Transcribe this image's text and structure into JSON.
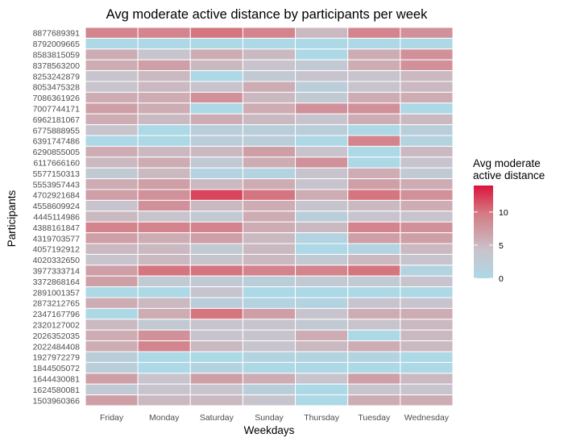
{
  "chart_data": {
    "type": "heatmap",
    "title": "Avg moderate active distance by participants per week",
    "xlabel": "Weekdays",
    "ylabel": "Participants",
    "x": [
      "Friday",
      "Monday",
      "Saturday",
      "Sunday",
      "Thursday",
      "Tuesday",
      "Wednesday"
    ],
    "y": [
      "8877689391",
      "8792009665",
      "8583815059",
      "8378563200",
      "8253242879",
      "8053475328",
      "7086361926",
      "7007744171",
      "6962181067",
      "6775888955",
      "6391747486",
      "6290855005",
      "6117666160",
      "5577150313",
      "5553957443",
      "4702921684",
      "4558609924",
      "4445114986",
      "4388161847",
      "4319703577",
      "4057192912",
      "4020332650",
      "3977333714",
      "3372868164",
      "2891001357",
      "2873212765",
      "2347167796",
      "2320127002",
      "2026352035",
      "2022484408",
      "1927972279",
      "1844505072",
      "1644430081",
      "1624580081",
      "1503960366"
    ],
    "values": [
      [
        9,
        9,
        10,
        9,
        5,
        9,
        8
      ],
      [
        0,
        0,
        0,
        0,
        0,
        0,
        0
      ],
      [
        6,
        4,
        6,
        5,
        0,
        6,
        8
      ],
      [
        6,
        7,
        5,
        4,
        3,
        6,
        8
      ],
      [
        4,
        5,
        0,
        3,
        4,
        4,
        5
      ],
      [
        4,
        5,
        4,
        6,
        2,
        4,
        5
      ],
      [
        6,
        6,
        8,
        5,
        3,
        6,
        6
      ],
      [
        7,
        6,
        0,
        6,
        8,
        8,
        0
      ],
      [
        6,
        5,
        6,
        5,
        4,
        6,
        5
      ],
      [
        4,
        0,
        2,
        2,
        2,
        0,
        2
      ],
      [
        0,
        0,
        2,
        2,
        0,
        9,
        1
      ],
      [
        6,
        5,
        5,
        7,
        4,
        0,
        5
      ],
      [
        5,
        6,
        3,
        6,
        8,
        0,
        4
      ],
      [
        3,
        5,
        1,
        1,
        4,
        6,
        3
      ],
      [
        6,
        7,
        5,
        6,
        4,
        7,
        6
      ],
      [
        7,
        8,
        12,
        10,
        6,
        10,
        8
      ],
      [
        4,
        8,
        5,
        6,
        4,
        5,
        6
      ],
      [
        5,
        4,
        3,
        6,
        2,
        4,
        4
      ],
      [
        9,
        9,
        9,
        6,
        5,
        9,
        8
      ],
      [
        7,
        6,
        7,
        5,
        1,
        7,
        7
      ],
      [
        5,
        5,
        3,
        5,
        0,
        1,
        5
      ],
      [
        4,
        5,
        4,
        5,
        3,
        5,
        4
      ],
      [
        7,
        10,
        10,
        9,
        9,
        10,
        1
      ],
      [
        7,
        3,
        3,
        2,
        3,
        3,
        4
      ],
      [
        0,
        0,
        4,
        0,
        0,
        0,
        0
      ],
      [
        6,
        5,
        2,
        1,
        1,
        4,
        4
      ],
      [
        0,
        6,
        10,
        7,
        4,
        6,
        6
      ],
      [
        5,
        3,
        4,
        4,
        3,
        4,
        5
      ],
      [
        6,
        8,
        4,
        4,
        6,
        0,
        5
      ],
      [
        6,
        9,
        5,
        4,
        5,
        6,
        5
      ],
      [
        2,
        0,
        0,
        1,
        1,
        1,
        0
      ],
      [
        2,
        0,
        1,
        0,
        0,
        0,
        0
      ],
      [
        7,
        4,
        7,
        6,
        4,
        7,
        5
      ],
      [
        3,
        4,
        4,
        2,
        0,
        4,
        4
      ],
      [
        7,
        5,
        5,
        4,
        0,
        6,
        6
      ]
    ],
    "colorbar": {
      "title_lines": [
        "Avg moderate",
        "active distance"
      ],
      "ticks": [
        0,
        5,
        10
      ],
      "range": [
        0,
        14
      ],
      "low_color": "#ADD8E6",
      "high_color": "#DC143C"
    },
    "legend_position": "right",
    "grid": true,
    "tile_border": "#ffffff"
  }
}
